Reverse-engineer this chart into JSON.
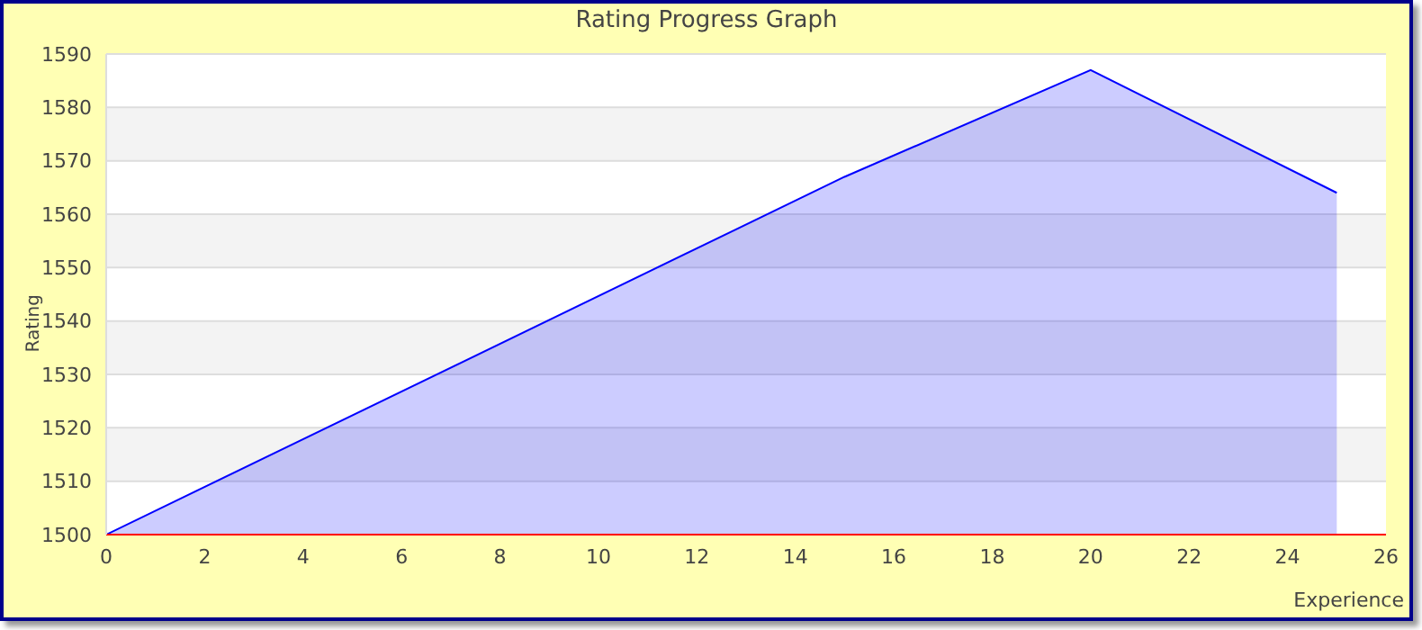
{
  "chart_data": {
    "type": "area",
    "title": "Rating Progress Graph",
    "xlabel": "Experience",
    "ylabel": "Rating",
    "x": [
      0,
      15,
      20,
      25
    ],
    "series": [
      {
        "color": "#0000ff",
        "values": [
          1500,
          1567,
          1587,
          1564
        ]
      }
    ],
    "xlim": [
      0,
      26
    ],
    "xticks": [
      0,
      2,
      4,
      6,
      8,
      10,
      12,
      14,
      16,
      18,
      20,
      22,
      24,
      26
    ],
    "ylim": [
      1500,
      1590
    ],
    "yticks": [
      1500,
      1510,
      1520,
      1530,
      1540,
      1550,
      1560,
      1570,
      1580,
      1590
    ],
    "grid": "y"
  }
}
